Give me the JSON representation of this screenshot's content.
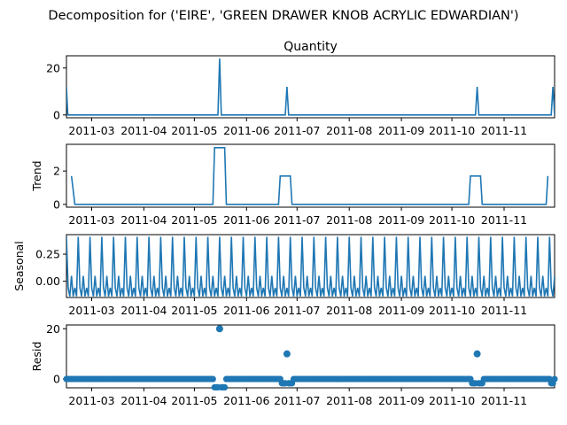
{
  "figure": {
    "suptitle": "Decomposition for ('EIRE', 'GREEN DRAWER KNOB ACRYLIC EDWARDIAN')",
    "line_color": "#1f77b4"
  },
  "chart_data": [
    {
      "type": "line",
      "panel": "observed",
      "title": "Quantity",
      "ylabel": "",
      "x_date_ticks": [
        "2011-03",
        "2011-04",
        "2011-05",
        "2011-06",
        "2011-07",
        "2011-08",
        "2011-09",
        "2011-10",
        "2011-11"
      ],
      "y_ticks": [
        0,
        20
      ],
      "ylim": [
        -1.2,
        25.2
      ],
      "baseline": 0,
      "events": [
        {
          "x": "2011-05-16",
          "y": 24
        },
        {
          "x": "2011-06-25",
          "y": 12
        },
        {
          "x": "2011-10-16",
          "y": 12
        },
        {
          "x": "2011-11-30",
          "y": 12
        }
      ],
      "start": {
        "x": "2011-02-14",
        "y": 12
      }
    },
    {
      "type": "line",
      "panel": "trend",
      "title": "",
      "ylabel": "Trend",
      "x_date_ticks": [
        "2011-03",
        "2011-04",
        "2011-05",
        "2011-06",
        "2011-07",
        "2011-08",
        "2011-09",
        "2011-10",
        "2011-11"
      ],
      "y_ticks": [
        0,
        2
      ],
      "ylim": [
        -0.17,
        3.6
      ],
      "points": [
        {
          "x": "2011-02-17",
          "y": 1.7
        },
        {
          "x": "2011-02-19",
          "y": 0
        },
        {
          "x": "2011-05-12",
          "y": 0
        },
        {
          "x": "2011-05-13",
          "y": 3.4
        },
        {
          "x": "2011-05-19",
          "y": 3.4
        },
        {
          "x": "2011-05-20",
          "y": 0
        },
        {
          "x": "2011-06-20",
          "y": 0
        },
        {
          "x": "2011-06-21",
          "y": 1.7
        },
        {
          "x": "2011-06-27",
          "y": 1.7
        },
        {
          "x": "2011-06-28",
          "y": 0
        },
        {
          "x": "2011-10-11",
          "y": 0
        },
        {
          "x": "2011-10-12",
          "y": 1.7
        },
        {
          "x": "2011-10-18",
          "y": 1.7
        },
        {
          "x": "2011-10-19",
          "y": 0
        },
        {
          "x": "2011-11-26",
          "y": 0
        },
        {
          "x": "2011-11-27",
          "y": 1.7
        }
      ]
    },
    {
      "type": "line",
      "panel": "seasonal",
      "title": "",
      "ylabel": "Seasonal",
      "x_date_ticks": [
        "2011-03",
        "2011-04",
        "2011-05",
        "2011-06",
        "2011-07",
        "2011-08",
        "2011-09",
        "2011-10",
        "2011-11"
      ],
      "y_ticks": [
        0.25,
        0.0
      ],
      "y_tick_labels": [
        "0.25",
        "0.00"
      ],
      "ylim": [
        -0.15,
        0.43
      ],
      "period_days": 7,
      "pattern": [
        0.41,
        -0.06,
        -0.14,
        0.05,
        -0.14,
        -0.06,
        -0.14
      ],
      "range": {
        "start": "2011-02-14",
        "end": "2011-12-01"
      }
    },
    {
      "type": "scatter",
      "panel": "resid",
      "title": "",
      "ylabel": "Resid",
      "x_date_ticks": [
        "2011-03",
        "2011-04",
        "2011-05",
        "2011-06",
        "2011-07",
        "2011-08",
        "2011-09",
        "2011-10",
        "2011-11"
      ],
      "y_ticks": [
        0,
        20
      ],
      "ylim": [
        -3.5,
        21.5
      ],
      "range": {
        "start": "2011-02-14",
        "end": "2011-12-01"
      },
      "baseline_value": 0,
      "highlights": [
        {
          "x": "2011-05-16",
          "y": 20
        },
        {
          "x": "2011-06-25",
          "y": 10
        },
        {
          "x": "2011-10-16",
          "y": 10
        }
      ],
      "dips": [
        {
          "x": "2011-05-13",
          "y": -3.3
        },
        {
          "x": "2011-05-14",
          "y": -3.3
        },
        {
          "x": "2011-05-15",
          "y": -3.3
        },
        {
          "x": "2011-05-17",
          "y": -3.3
        },
        {
          "x": "2011-05-18",
          "y": -3.3
        },
        {
          "x": "2011-05-19",
          "y": -3.3
        },
        {
          "x": "2011-06-22",
          "y": -1.7
        },
        {
          "x": "2011-06-23",
          "y": -1.7
        },
        {
          "x": "2011-06-24",
          "y": -1.7
        },
        {
          "x": "2011-06-26",
          "y": -1.7
        },
        {
          "x": "2011-06-27",
          "y": -1.7
        },
        {
          "x": "2011-06-28",
          "y": -1.7
        },
        {
          "x": "2011-10-13",
          "y": -1.7
        },
        {
          "x": "2011-10-14",
          "y": -1.7
        },
        {
          "x": "2011-10-15",
          "y": -1.7
        },
        {
          "x": "2011-10-17",
          "y": -1.7
        },
        {
          "x": "2011-10-18",
          "y": -1.7
        },
        {
          "x": "2011-10-19",
          "y": -1.7
        },
        {
          "x": "2011-11-29",
          "y": -1.7
        },
        {
          "x": "2011-11-30",
          "y": -1.7
        }
      ]
    }
  ]
}
